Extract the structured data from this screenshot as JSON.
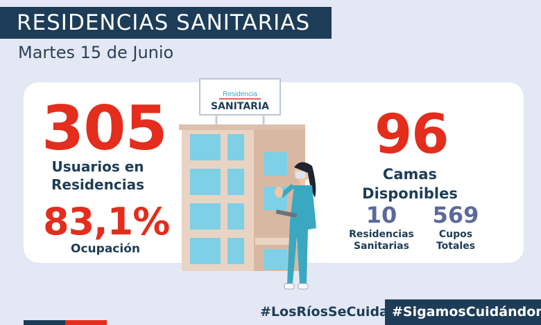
{
  "header": {
    "title": "RESIDENCIAS SANITARIAS",
    "date": "Martes 15  de Junio"
  },
  "stats": {
    "usuarios_value": "305",
    "usuarios_label_line1": "Usuarios en",
    "usuarios_label_line2": "Residencias",
    "ocupacion_value": "83,1%",
    "ocupacion_label": "Ocupación",
    "camas_value": "96",
    "camas_label": "Camas Disponibles",
    "residencias_value": "10",
    "residencias_label_line1": "Residencias",
    "residencias_label_line2": "Sanitarias",
    "cupos_value": "569",
    "cupos_label_line1": "Cupos",
    "cupos_label_line2": "Totales"
  },
  "sign": {
    "line1": "Residencia",
    "line2": "SANITARIA"
  },
  "footer": {
    "hashtag1": "#LosRíosSeCuida",
    "hashtag2": "#SigamosCuidándonos"
  },
  "colors": {
    "navy": "#1d3c57",
    "red": "#e42d1c",
    "slate": "#5b6a9a",
    "background": "#e4e8f4",
    "teal": "#3aa8c0"
  }
}
